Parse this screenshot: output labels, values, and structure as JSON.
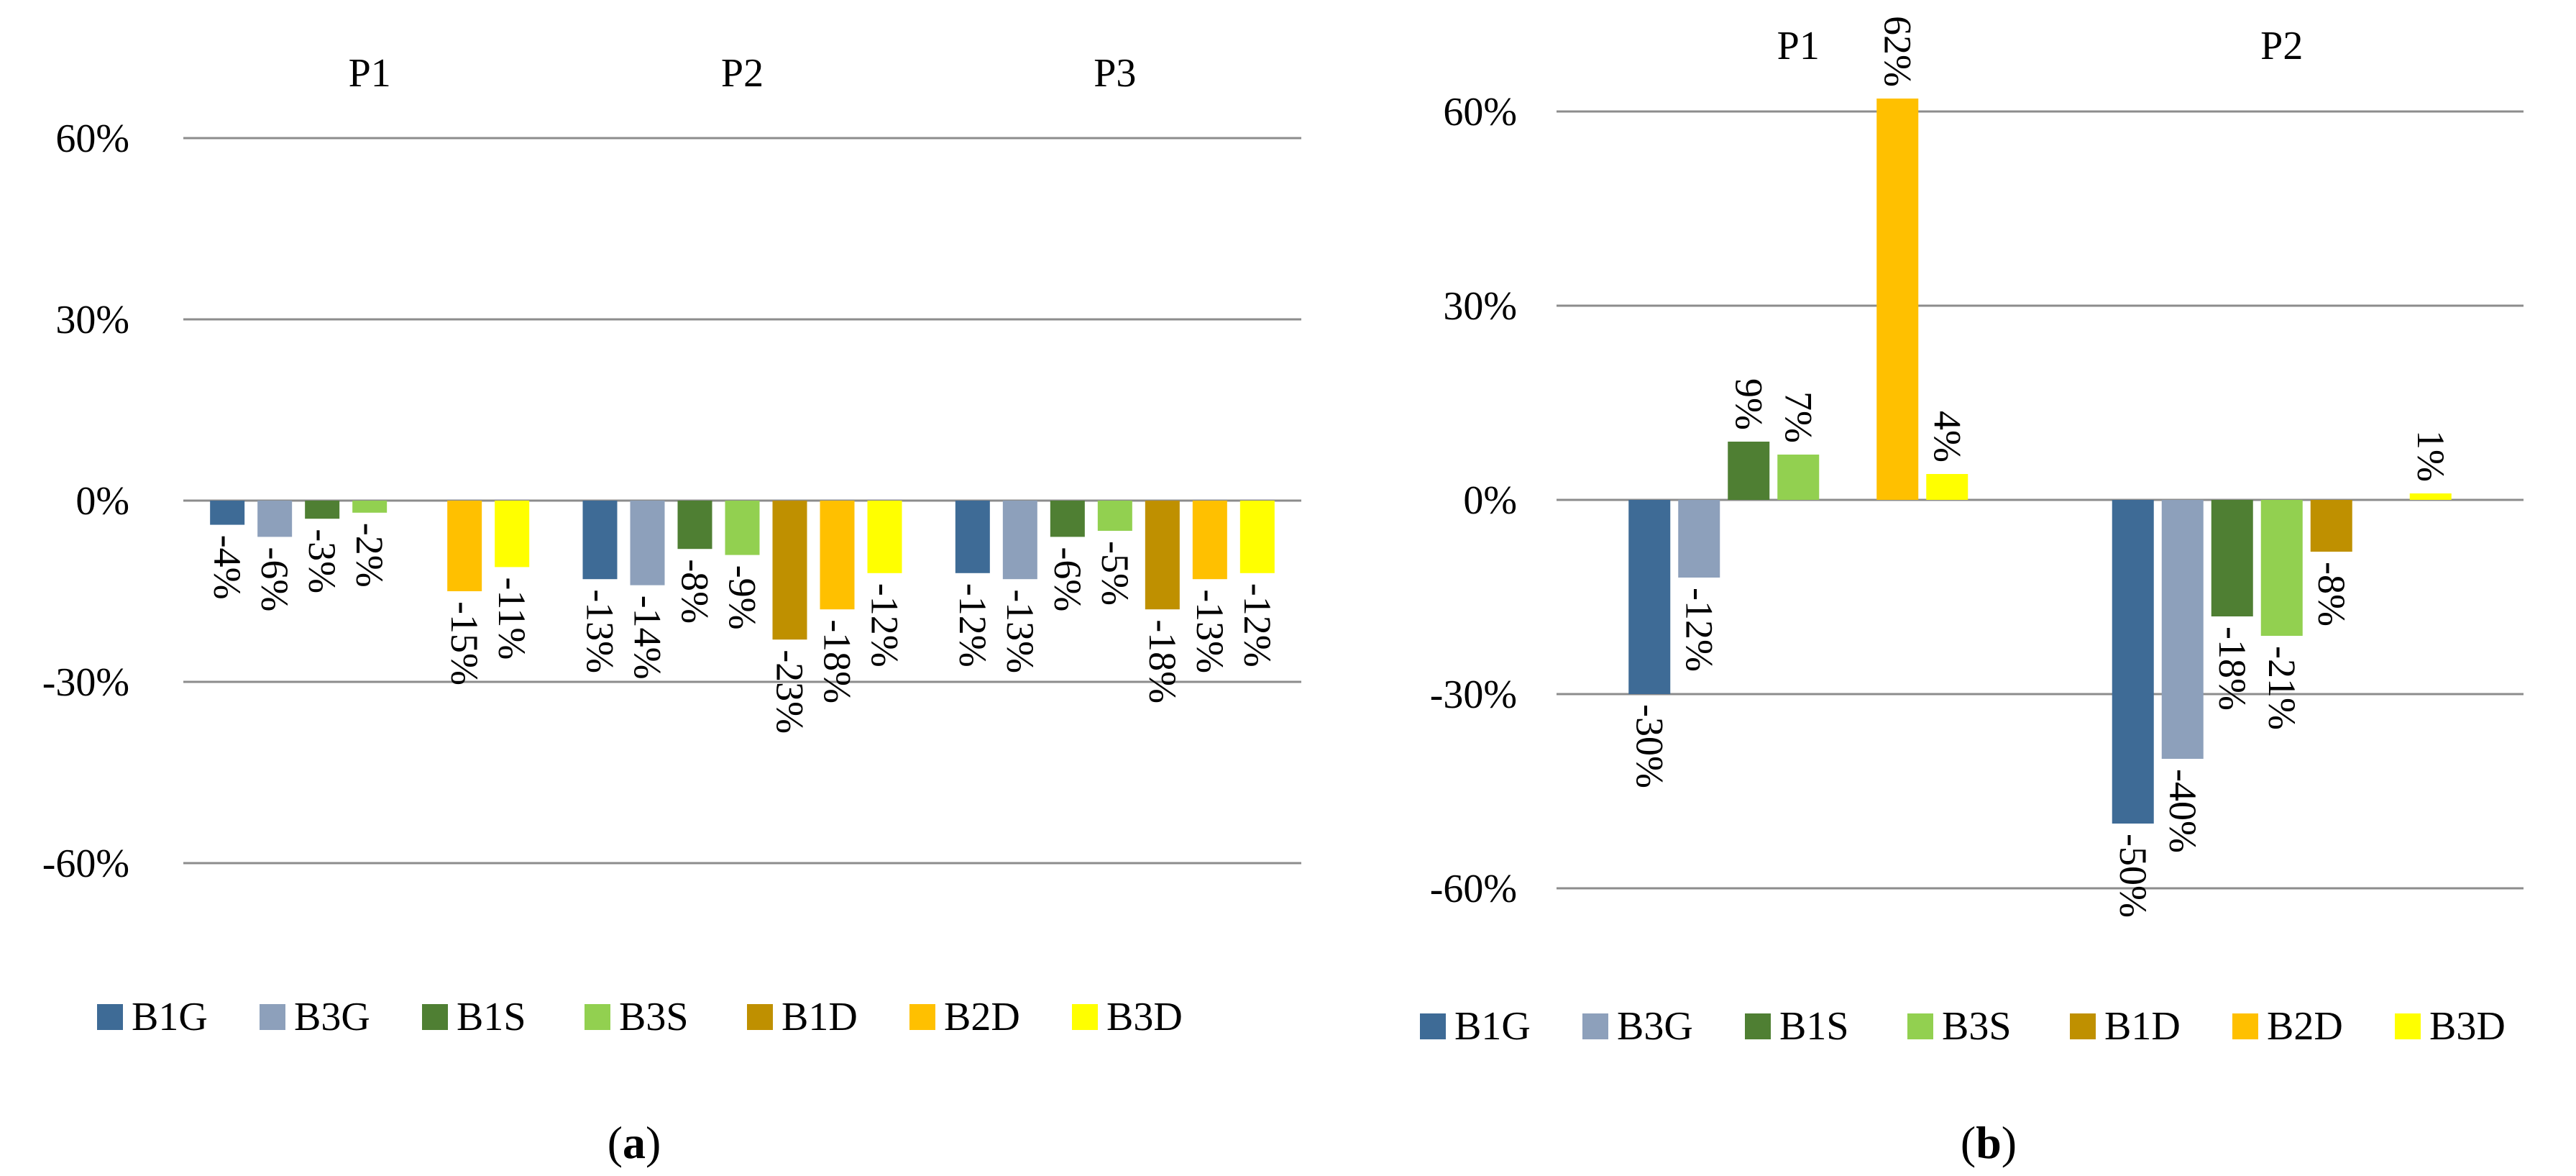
{
  "legend": [
    {
      "name": "B1G",
      "color": "#3e6b96"
    },
    {
      "name": "B3G",
      "color": "#8da0bb"
    },
    {
      "name": "B1S",
      "color": "#4f7f33"
    },
    {
      "name": "B3S",
      "color": "#92d050"
    },
    {
      "name": "B1D",
      "color": "#bf9000"
    },
    {
      "name": "B2D",
      "color": "#ffc000"
    },
    {
      "name": "B3D",
      "color": "#ffff00"
    }
  ],
  "captions": {
    "a_open": "(",
    "a_letter": "a",
    "a_close": ")",
    "b_open": "(",
    "b_letter": "b",
    "b_close": ")"
  },
  "chart_data": [
    {
      "type": "bar",
      "panel": "a",
      "categories": [
        "P1",
        "P2",
        "P3"
      ],
      "yticks": [
        "60%",
        "30%",
        "0%",
        "-30%",
        "-60%"
      ],
      "ylim": [
        -60,
        60
      ],
      "grid": true,
      "legend_position": "bottom",
      "series": [
        {
          "name": "B1G",
          "values": [
            -4,
            -13,
            -12
          ],
          "labels": [
            "-4%",
            "-13%",
            "-12%"
          ]
        },
        {
          "name": "B3G",
          "values": [
            -6,
            -14,
            -13
          ],
          "labels": [
            "-6%",
            "-14%",
            "-13%"
          ]
        },
        {
          "name": "B1S",
          "values": [
            -3,
            -8,
            -6
          ],
          "labels": [
            "-3%",
            "-8%",
            "-6%"
          ]
        },
        {
          "name": "B3S",
          "values": [
            -2,
            -9,
            -5
          ],
          "labels": [
            "-2%",
            "-9%",
            "-5%"
          ]
        },
        {
          "name": "B1D",
          "values": [
            null,
            -23,
            -18
          ],
          "labels": [
            "",
            "-23%",
            "-18%"
          ]
        },
        {
          "name": "B2D",
          "values": [
            -15,
            -18,
            -13
          ],
          "labels": [
            "-15%",
            "-18%",
            "-13%"
          ]
        },
        {
          "name": "B3D",
          "values": [
            -11,
            -12,
            -12
          ],
          "labels": [
            "-11%",
            "-12%",
            "-12%"
          ]
        }
      ]
    },
    {
      "type": "bar",
      "panel": "b",
      "categories": [
        "P1",
        "P2"
      ],
      "yticks": [
        "60%",
        "30%",
        "0%",
        "-30%",
        "-60%"
      ],
      "ylim": [
        -60,
        60
      ],
      "grid": true,
      "legend_position": "bottom",
      "series": [
        {
          "name": "B1G",
          "values": [
            -30,
            -50
          ],
          "labels": [
            "-30%",
            "-50%"
          ]
        },
        {
          "name": "B3G",
          "values": [
            -12,
            -40
          ],
          "labels": [
            "-12%",
            "-40%"
          ]
        },
        {
          "name": "B1S",
          "values": [
            9,
            -18
          ],
          "labels": [
            "9%",
            "-18%"
          ]
        },
        {
          "name": "B3S",
          "values": [
            7,
            -21
          ],
          "labels": [
            "7%",
            "-21%"
          ]
        },
        {
          "name": "B1D",
          "values": [
            null,
            -8
          ],
          "labels": [
            "",
            "-8%"
          ]
        },
        {
          "name": "B2D",
          "values": [
            62,
            null
          ],
          "labels": [
            "62%",
            ""
          ]
        },
        {
          "name": "B3D",
          "values": [
            4,
            1
          ],
          "labels": [
            "4%",
            "1%"
          ]
        }
      ]
    }
  ]
}
